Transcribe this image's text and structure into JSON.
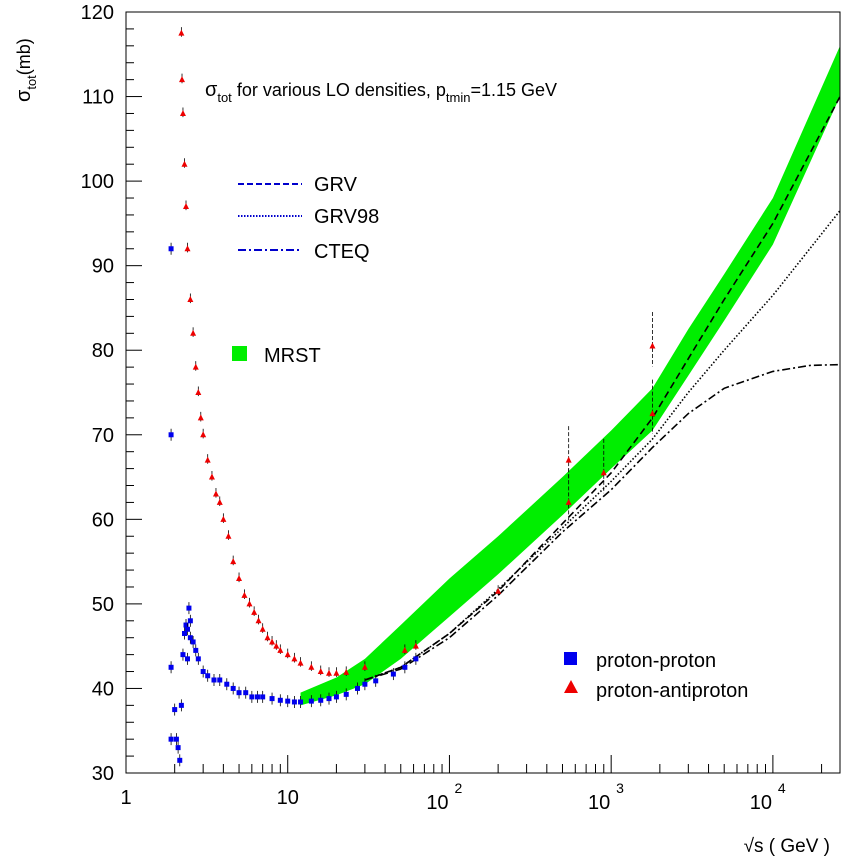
{
  "chart_data": {
    "type": "line",
    "title_main": "σ",
    "title_sub": "tot",
    "title_rest": "  for various LO densities, p",
    "title_sub2": "tmin",
    "title_end": "=1.15 GeV",
    "ylabel_main": "σ",
    "ylabel_sub": "tot",
    "ylabel_rest": "(mb)",
    "xlabel": "√s ( GeV )",
    "xlog": true,
    "xlim": [
      1,
      26000
    ],
    "ylim": [
      30,
      120
    ],
    "x_ticks": [
      {
        "value": 1,
        "label": "1"
      },
      {
        "value": 10,
        "label": "10"
      },
      {
        "value": 100,
        "base": "10",
        "exp": "2"
      },
      {
        "value": 1000,
        "base": "10",
        "exp": "3"
      },
      {
        "value": 10000,
        "base": "10",
        "exp": "4"
      }
    ],
    "y_ticks": [
      30,
      40,
      50,
      60,
      70,
      80,
      90,
      100,
      110,
      120
    ],
    "legend_upper": [
      {
        "name": "GRV",
        "style": "dashed",
        "color": "#0000cc"
      },
      {
        "name": "GRV98",
        "style": "dotted",
        "color": "#0000cc"
      },
      {
        "name": "CTEQ",
        "style": "dashdot",
        "color": "#0000cc"
      },
      {
        "name": "MRST",
        "style": "band",
        "color": "#00ee00"
      }
    ],
    "legend_lower": [
      {
        "name": "proton-proton",
        "marker": "square",
        "color": "#0000ee"
      },
      {
        "name": "proton-antiproton",
        "marker": "triangle",
        "color": "#ee0000"
      }
    ],
    "mrst_band": {
      "x": [
        12,
        20,
        30,
        50,
        100,
        200,
        500,
        1000,
        1800,
        3000,
        5000,
        10000,
        26000
      ],
      "upper": [
        39.5,
        41.3,
        43.5,
        47.5,
        53.0,
        58.0,
        65.0,
        70.5,
        75.5,
        82.5,
        89.0,
        98.0,
        116.0
      ],
      "lower": [
        38.0,
        39.2,
        40.5,
        43.5,
        48.5,
        53.5,
        60.5,
        66.0,
        70.5,
        77.0,
        83.5,
        92.5,
        110.0
      ]
    },
    "series": [
      {
        "name": "GRV",
        "style": "dashed",
        "color": "#000000",
        "x": [
          30,
          50,
          100,
          200,
          500,
          1000,
          1800,
          3000,
          5000,
          10000,
          26000
        ],
        "y": [
          41.0,
          42.5,
          46.5,
          51.5,
          59.5,
          65.5,
          72.0,
          79.0,
          86.0,
          95.0,
          110.0
        ]
      },
      {
        "name": "GRV98",
        "style": "dotted",
        "color": "#000000",
        "x": [
          30,
          50,
          100,
          200,
          500,
          1000,
          1800,
          3000,
          5000,
          10000,
          26000
        ],
        "y": [
          41.0,
          42.5,
          46.5,
          51.7,
          59.0,
          64.5,
          69.5,
          75.0,
          80.0,
          86.5,
          96.5
        ]
      },
      {
        "name": "CTEQ",
        "style": "dashdot",
        "color": "#000000",
        "x": [
          30,
          50,
          100,
          200,
          500,
          1000,
          1800,
          3000,
          5000,
          10000,
          17000,
          26000
        ],
        "y": [
          41.0,
          42.3,
          46.0,
          51.0,
          58.5,
          63.5,
          68.5,
          72.5,
          75.5,
          77.5,
          78.2,
          78.3
        ]
      }
    ],
    "pp_data": {
      "x": [
        1.9,
        1.9,
        2.0,
        2.05,
        2.1,
        2.15,
        2.2,
        2.25,
        2.3,
        2.35,
        2.4,
        2.5,
        2.6,
        2.7,
        2.8,
        3.0,
        3.2,
        3.5,
        3.8,
        4.2,
        4.6,
        5.0,
        5.5,
        6.0,
        6.5,
        7.0,
        8.0,
        9.0,
        10.0,
        11.0,
        12.0,
        14.0,
        16.0,
        18.0,
        20.0,
        23.0,
        27.0,
        30.0,
        35.0,
        45.0,
        53.0,
        62.0,
        1.9,
        1.9,
        2.45,
        2.5,
        2.4
      ],
      "y": [
        92.0,
        70.0,
        37.5,
        34.0,
        33.0,
        31.5,
        38.0,
        44.0,
        46.5,
        47.5,
        47.0,
        46.0,
        45.5,
        44.5,
        43.5,
        42.0,
        41.5,
        41.0,
        41.0,
        40.5,
        40.0,
        39.5,
        39.5,
        39.0,
        39.0,
        39.0,
        38.8,
        38.6,
        38.5,
        38.4,
        38.4,
        38.5,
        38.6,
        38.8,
        39.0,
        39.3,
        40.0,
        40.5,
        40.9,
        41.7,
        42.5,
        43.5,
        42.5,
        34.0,
        49.5,
        48.0,
        43.5
      ]
    },
    "pbarp_data": {
      "x": [
        2.2,
        2.22,
        2.25,
        2.3,
        2.35,
        2.4,
        2.5,
        2.6,
        2.7,
        2.8,
        2.9,
        3.0,
        3.2,
        3.4,
        3.6,
        3.8,
        4.0,
        4.3,
        4.6,
        5.0,
        5.4,
        5.8,
        6.2,
        6.6,
        7.0,
        7.5,
        8.0,
        8.5,
        9.0,
        10.0,
        11.0,
        12.0,
        14.0,
        16.0,
        18.0,
        20.0,
        23.0,
        30.0,
        53.0,
        62.0,
        200.0,
        546.0,
        546.0,
        900.0,
        1800.0,
        1800.0
      ],
      "y": [
        117.5,
        112.0,
        108.0,
        102.0,
        97.0,
        92.0,
        86.0,
        82.0,
        78.0,
        75.0,
        72.0,
        70.0,
        67.0,
        65.0,
        63.0,
        62.0,
        60.0,
        58.0,
        55.0,
        53.0,
        51.0,
        50.0,
        49.0,
        48.0,
        47.0,
        46.0,
        45.5,
        45.0,
        44.5,
        44.0,
        43.5,
        43.0,
        42.5,
        42.0,
        41.8,
        41.8,
        41.9,
        42.5,
        44.5,
        45.0,
        51.5,
        67.0,
        62.0,
        65.5,
        80.5,
        72.5
      ]
    }
  }
}
